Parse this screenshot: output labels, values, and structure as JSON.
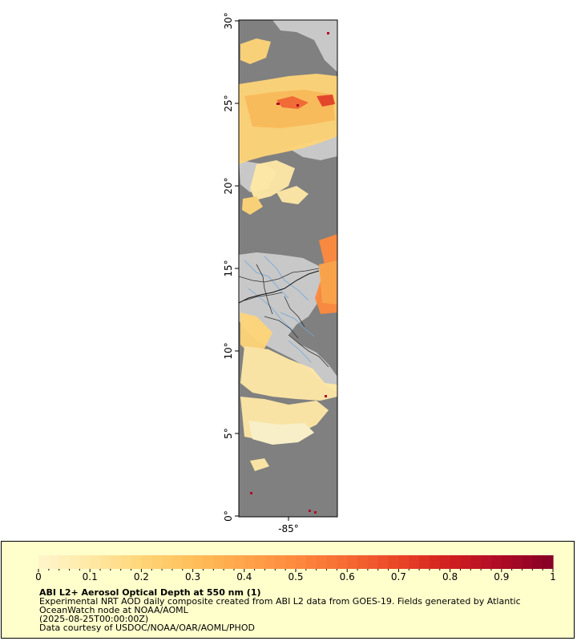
{
  "map": {
    "lat_labels": [
      "30°",
      "25°",
      "20°",
      "15°",
      "10°",
      "5°",
      "0°"
    ],
    "lon_labels": [
      "-85°"
    ],
    "colors": {
      "ocean": "#808080",
      "land": "#c8c8c8",
      "borders": "#333333",
      "rivers": "#6fa8dc"
    }
  },
  "colorbar": {
    "tick_labels": [
      "0",
      "0.1",
      "0.2",
      "0.3",
      "0.4",
      "0.5",
      "0.6",
      "0.7",
      "0.8",
      "0.9",
      "1"
    ],
    "range": [
      0,
      1
    ],
    "colors": [
      "#fff5cc",
      "#ffe9a6",
      "#ffd578",
      "#ffbf5a",
      "#ffa44a",
      "#fe8a3e",
      "#f66a32",
      "#e94527",
      "#d01f1f",
      "#ae0a26",
      "#850026"
    ]
  },
  "caption": {
    "title": "ABI L2+ Aerosol Optical Depth at 550 nm (1)",
    "line1": "Experimental NRT AOD daily composite created from ABI L2 data from GOES-19. Fields generated by Atlantic",
    "line2": "OceanWatch node at NOAA/AOML",
    "line3": "(2025-08-25T00:00:00Z)",
    "line4": "Data courtesy of USDOC/NOAA/OAR/AOML/PHOD"
  }
}
